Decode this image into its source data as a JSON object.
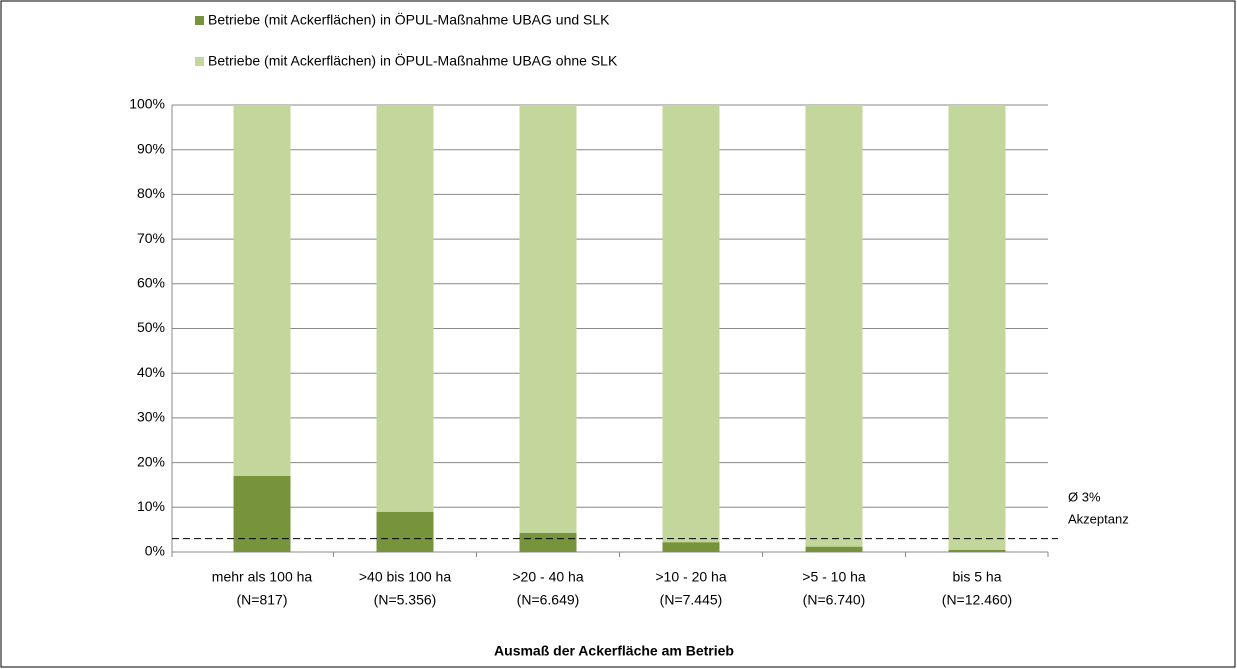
{
  "chart_data": {
    "type": "stacked_bar",
    "x_axis_label": "Ausmaß der Ackerfläche am Betrieb",
    "categories": [
      [
        "mehr als 100 ha",
        "(N=817)"
      ],
      [
        ">40 bis 100 ha",
        "(N=5.356)"
      ],
      [
        ">20 - 40 ha",
        "(N=6.649)"
      ],
      [
        ">10 - 20 ha",
        "(N=7.445)"
      ],
      [
        ">5 - 10 ha",
        "(N=6.740)"
      ],
      [
        "bis 5 ha",
        "(N=12.460)"
      ]
    ],
    "series": [
      {
        "name": "Betriebe (mit Ackerflächen) in ÖPUL-Maßnahme UBAG und SLK",
        "color": "#77933c",
        "values": [
          17,
          9,
          4.3,
          2.2,
          1.2,
          0.5
        ]
      },
      {
        "name": "Betriebe (mit Ackerflächen) in ÖPUL-Maßnahme UBAG ohne SLK",
        "color": "#c3d69b",
        "values": [
          83,
          91,
          95.7,
          97.8,
          98.8,
          99.5
        ]
      }
    ],
    "ylim": [
      0,
      100
    ],
    "yticks": [
      {
        "value": 0,
        "label": "0%"
      },
      {
        "value": 10,
        "label": "10%"
      },
      {
        "value": 20,
        "label": "20%"
      },
      {
        "value": 30,
        "label": "30%"
      },
      {
        "value": 40,
        "label": "40%"
      },
      {
        "value": 50,
        "label": "50%"
      },
      {
        "value": 60,
        "label": "60%"
      },
      {
        "value": 70,
        "label": "70%"
      },
      {
        "value": 80,
        "label": "80%"
      },
      {
        "value": 90,
        "label": "90%"
      },
      {
        "value": 100,
        "label": "100%"
      }
    ],
    "grid": true,
    "legend_position": "top",
    "reference_line": {
      "value": 3,
      "label_lines": [
        "Ø 3%",
        "Akzeptanz"
      ]
    }
  }
}
